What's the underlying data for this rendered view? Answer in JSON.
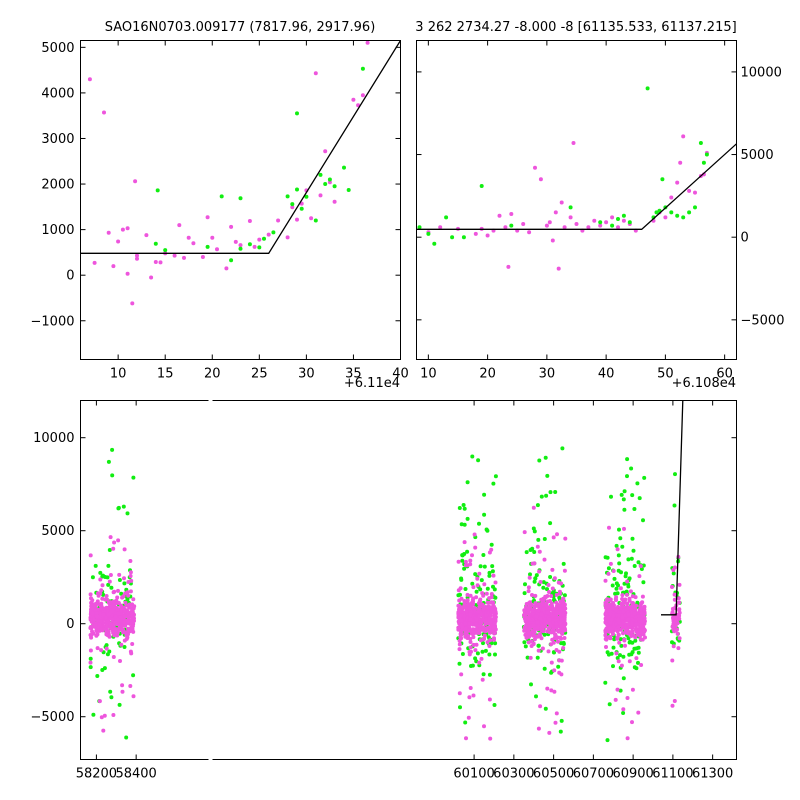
{
  "chart_data": [
    {
      "id": "top-left",
      "type": "scatter",
      "title": "SAO16N0703.009177 (7817.96, 2917.96)",
      "x_offset_label": "+6.11e4",
      "xlim": [
        6,
        40
      ],
      "ylim": [
        -1850,
        5150
      ],
      "xticks": [
        10,
        15,
        20,
        25,
        30,
        35,
        40
      ],
      "yticks": [
        -1000,
        0,
        1000,
        2000,
        3000,
        4000,
        5000
      ],
      "y_axis_side": "left",
      "model_line": [
        [
          6,
          480
        ],
        [
          26,
          480
        ],
        [
          40,
          5150
        ]
      ],
      "series": [
        {
          "color": "#ee55dd",
          "points": [
            [
              7,
              4300
            ],
            [
              7.5,
              270
            ],
            [
              8.5,
              3570
            ],
            [
              9,
              930
            ],
            [
              9.5,
              200
            ],
            [
              10,
              740
            ],
            [
              10.5,
              1000
            ],
            [
              11,
              30
            ],
            [
              11,
              1030
            ],
            [
              11.5,
              -620
            ],
            [
              11.8,
              2060
            ],
            [
              12,
              430
            ],
            [
              12,
              360
            ],
            [
              13,
              880
            ],
            [
              13.5,
              -50
            ],
            [
              14,
              290
            ],
            [
              14.5,
              280
            ],
            [
              15,
              480
            ],
            [
              16,
              430
            ],
            [
              16.5,
              1100
            ],
            [
              17,
              380
            ],
            [
              17.5,
              820
            ],
            [
              18,
              700
            ],
            [
              19,
              400
            ],
            [
              19.5,
              1270
            ],
            [
              20,
              820
            ],
            [
              20.5,
              570
            ],
            [
              21.5,
              150
            ],
            [
              22,
              1060
            ],
            [
              22.5,
              730
            ],
            [
              23,
              660
            ],
            [
              24,
              1190
            ],
            [
              24.5,
              620
            ],
            [
              25,
              780
            ],
            [
              26,
              890
            ],
            [
              27,
              1200
            ],
            [
              28,
              830
            ],
            [
              28.5,
              1490
            ],
            [
              29,
              1220
            ],
            [
              29.5,
              1570
            ],
            [
              30,
              1860
            ],
            [
              30.5,
              1250
            ],
            [
              31,
              4430
            ],
            [
              31.5,
              1750
            ],
            [
              32,
              2720
            ],
            [
              32.5,
              2040
            ],
            [
              33,
              1610
            ],
            [
              35,
              3850
            ],
            [
              35.5,
              3730
            ],
            [
              36,
              3950
            ],
            [
              36.5,
              5100
            ]
          ]
        },
        {
          "color": "#11ee11",
          "points": [
            [
              14,
              690
            ],
            [
              14.2,
              1860
            ],
            [
              15,
              550
            ],
            [
              19.5,
              620
            ],
            [
              21,
              1730
            ],
            [
              22,
              330
            ],
            [
              23,
              1690
            ],
            [
              23,
              580
            ],
            [
              24,
              680
            ],
            [
              25,
              610
            ],
            [
              25.5,
              800
            ],
            [
              26.5,
              940
            ],
            [
              28,
              1730
            ],
            [
              28.5,
              1560
            ],
            [
              29,
              1880
            ],
            [
              29,
              3550
            ],
            [
              29.5,
              1460
            ],
            [
              30,
              1720
            ],
            [
              31,
              1200
            ],
            [
              31.5,
              2200
            ],
            [
              32,
              2000
            ],
            [
              32.5,
              2100
            ],
            [
              33,
              1950
            ],
            [
              34,
              2360
            ],
            [
              34.5,
              1870
            ],
            [
              36,
              4530
            ]
          ]
        }
      ]
    },
    {
      "id": "top-right",
      "type": "scatter",
      "title": "3 262 2734.27 -8.000 -8 [61135.533, 61137.215]",
      "x_offset_label": "+6.108e4",
      "xlim": [
        8,
        62
      ],
      "ylim": [
        -7400,
        11900
      ],
      "xticks": [
        10,
        20,
        30,
        40,
        50,
        60
      ],
      "yticks": [
        -5000,
        0,
        5000,
        10000
      ],
      "y_axis_side": "right",
      "model_line": [
        [
          8,
          480
        ],
        [
          46,
          480
        ],
        [
          62,
          5650
        ]
      ],
      "series": [
        {
          "color": "#ee55dd",
          "points": [
            [
              10,
              300
            ],
            [
              12,
              600
            ],
            [
              15,
              500
            ],
            [
              18,
              200
            ],
            [
              19,
              500
            ],
            [
              20,
              100
            ],
            [
              21,
              400
            ],
            [
              22,
              1300
            ],
            [
              23,
              600
            ],
            [
              23.5,
              -1800
            ],
            [
              24,
              1400
            ],
            [
              25,
              400
            ],
            [
              26,
              800
            ],
            [
              27,
              300
            ],
            [
              28,
              4200
            ],
            [
              29,
              3500
            ],
            [
              30,
              700
            ],
            [
              30.5,
              900
            ],
            [
              31,
              -200
            ],
            [
              31.5,
              1500
            ],
            [
              32,
              -1900
            ],
            [
              32.5,
              2100
            ],
            [
              33,
              600
            ],
            [
              34,
              1200
            ],
            [
              34.5,
              5700
            ],
            [
              35,
              800
            ],
            [
              36,
              400
            ],
            [
              37,
              600
            ],
            [
              38,
              1000
            ],
            [
              39,
              700
            ],
            [
              40,
              900
            ],
            [
              41,
              1200
            ],
            [
              42,
              600
            ],
            [
              43,
              1000
            ],
            [
              44,
              800
            ],
            [
              45,
              400
            ],
            [
              48,
              1000
            ],
            [
              49,
              1500
            ],
            [
              50,
              1200
            ],
            [
              51,
              2400
            ],
            [
              52,
              3300
            ],
            [
              52.5,
              4500
            ],
            [
              53,
              6100
            ],
            [
              54,
              2800
            ],
            [
              55,
              2700
            ],
            [
              56,
              3700
            ],
            [
              56.5,
              3800
            ],
            [
              57,
              5100
            ]
          ]
        },
        {
          "color": "#11ee11",
          "points": [
            [
              8.5,
              600
            ],
            [
              10,
              200
            ],
            [
              11,
              -400
            ],
            [
              13,
              1200
            ],
            [
              14,
              0
            ],
            [
              16,
              0
            ],
            [
              19,
              3100
            ],
            [
              24,
              700
            ],
            [
              34,
              1800
            ],
            [
              39,
              900
            ],
            [
              41,
              700
            ],
            [
              42,
              1100
            ],
            [
              43,
              1300
            ],
            [
              44,
              900
            ],
            [
              47,
              9000
            ],
            [
              48,
              1200
            ],
            [
              48.5,
              1500
            ],
            [
              49,
              1600
            ],
            [
              49.5,
              3500
            ],
            [
              50,
              1800
            ],
            [
              51,
              1500
            ],
            [
              52,
              1300
            ],
            [
              53,
              1200
            ],
            [
              54,
              1500
            ],
            [
              55,
              1800
            ],
            [
              56,
              5700
            ],
            [
              56.5,
              4500
            ],
            [
              57,
              5000
            ]
          ]
        }
      ]
    },
    {
      "id": "bottom",
      "type": "scatter",
      "xlim": [
        58120,
        61420
      ],
      "ylim": [
        -7300,
        12000
      ],
      "xticks": [
        58200,
        58400,
        60100,
        60300,
        60500,
        60700,
        60900,
        61100,
        61300
      ],
      "yticks": [
        -5000,
        0,
        5000,
        10000
      ],
      "y_axis_side": "left",
      "axis_break": true,
      "model_line": [
        [
          61040,
          480
        ],
        [
          61116,
          480
        ],
        [
          61150,
          12000
        ]
      ],
      "clusters": [
        {
          "x_range": [
            58170,
            58390
          ],
          "magenta_n": 450,
          "green_n": 100
        },
        {
          "x_range": [
            60020,
            60210
          ],
          "magenta_n": 450,
          "green_n": 150
        },
        {
          "x_range": [
            60350,
            60560
          ],
          "magenta_n": 500,
          "green_n": 150
        },
        {
          "x_range": [
            60760,
            60960
          ],
          "magenta_n": 500,
          "green_n": 150
        },
        {
          "x_range": [
            61095,
            61135
          ],
          "magenta_n": 60,
          "green_n": 30
        }
      ],
      "series_colors": [
        "#ee55dd",
        "#11ee11"
      ]
    }
  ]
}
